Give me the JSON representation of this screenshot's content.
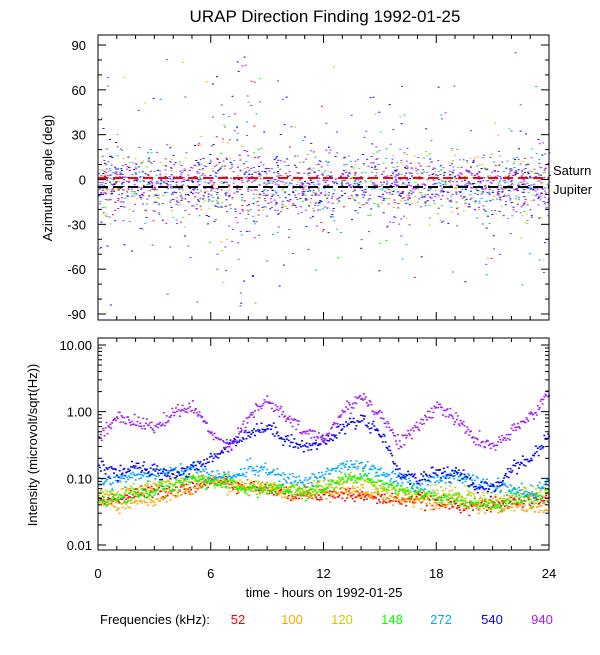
{
  "chart_data": [
    {
      "type": "scatter",
      "title": "URAP Direction Finding  1992-01-25",
      "ylabel": "Azimuthal angle (deg)",
      "xlim": [
        0,
        24
      ],
      "ylim": [
        -90,
        90
      ],
      "yticks": [
        "90",
        "60",
        "30",
        "0",
        "-30",
        "-60",
        "-90"
      ],
      "ytick_values": [
        90,
        60,
        30,
        0,
        -30,
        -60,
        -90
      ],
      "reference_lines": [
        {
          "name": "Saturn",
          "value": 1,
          "color": "#ff0000"
        },
        {
          "name": "Jupiter",
          "value": -5,
          "color": "#000000"
        }
      ],
      "scatter_center_deg": -3,
      "scatter_spread_deg": 10
    },
    {
      "type": "line",
      "xlabel": "time - hours on 1992-01-25",
      "ylabel": "Intensity (microvolt/sqrt(Hz))",
      "xlim": [
        0,
        24
      ],
      "ylim": [
        0.01,
        10
      ],
      "yscale": "log",
      "yticks": [
        "10.00",
        "1.00",
        "0.10",
        "0.01"
      ],
      "ytick_values": [
        10,
        1,
        0.1,
        0.01
      ],
      "xticks": [
        "0",
        "6",
        "12",
        "18",
        "24"
      ],
      "xtick_values": [
        0,
        6,
        12,
        18,
        24
      ],
      "x": [
        0,
        1,
        2,
        3,
        4,
        5,
        6,
        7,
        8,
        9,
        10,
        11,
        12,
        13,
        14,
        15,
        16,
        17,
        18,
        19,
        20,
        21,
        22,
        23,
        24
      ],
      "series": [
        {
          "name": "52",
          "color": "#ff0000",
          "values": [
            0.05,
            0.05,
            0.06,
            0.065,
            0.07,
            0.08,
            0.09,
            0.09,
            0.08,
            0.07,
            0.06,
            0.06,
            0.06,
            0.06,
            0.055,
            0.05,
            0.05,
            0.05,
            0.045,
            0.04,
            0.04,
            0.04,
            0.045,
            0.05,
            0.05
          ]
        },
        {
          "name": "100",
          "color": "#ffa500",
          "values": [
            0.045,
            0.04,
            0.045,
            0.05,
            0.06,
            0.07,
            0.1,
            0.08,
            0.07,
            0.07,
            0.06,
            0.06,
            0.06,
            0.07,
            0.06,
            0.06,
            0.05,
            0.05,
            0.045,
            0.05,
            0.04,
            0.035,
            0.04,
            0.04,
            0.035
          ]
        },
        {
          "name": "120",
          "color": "#cccc00",
          "values": [
            0.06,
            0.06,
            0.07,
            0.08,
            0.09,
            0.1,
            0.1,
            0.09,
            0.08,
            0.08,
            0.07,
            0.07,
            0.08,
            0.1,
            0.1,
            0.08,
            0.07,
            0.06,
            0.06,
            0.06,
            0.05,
            0.05,
            0.06,
            0.06,
            0.07
          ]
        },
        {
          "name": "148",
          "color": "#00ff00",
          "values": [
            0.05,
            0.05,
            0.06,
            0.065,
            0.08,
            0.1,
            0.09,
            0.08,
            0.07,
            0.07,
            0.07,
            0.06,
            0.07,
            0.1,
            0.11,
            0.09,
            0.07,
            0.06,
            0.05,
            0.05,
            0.045,
            0.04,
            0.05,
            0.05,
            0.06
          ]
        },
        {
          "name": "272",
          "color": "#00aaff",
          "values": [
            0.09,
            0.1,
            0.11,
            0.12,
            0.13,
            0.14,
            0.12,
            0.1,
            0.15,
            0.13,
            0.1,
            0.09,
            0.12,
            0.16,
            0.15,
            0.12,
            0.1,
            0.08,
            0.1,
            0.12,
            0.09,
            0.08,
            0.07,
            0.06,
            0.09
          ]
        },
        {
          "name": "540",
          "color": "#0000ff",
          "values": [
            0.15,
            0.12,
            0.15,
            0.13,
            0.12,
            0.14,
            0.2,
            0.35,
            0.5,
            0.6,
            0.4,
            0.3,
            0.35,
            0.6,
            0.8,
            0.5,
            0.12,
            0.1,
            0.13,
            0.12,
            0.08,
            0.07,
            0.15,
            0.2,
            0.5
          ]
        },
        {
          "name": "940",
          "color": "#a020f0",
          "values": [
            0.4,
            0.9,
            0.7,
            0.6,
            1.0,
            1.2,
            0.5,
            0.3,
            0.9,
            1.5,
            0.8,
            0.5,
            0.4,
            1.0,
            1.8,
            0.9,
            0.35,
            0.6,
            1.3,
            0.8,
            0.4,
            0.3,
            0.5,
            0.9,
            2.0
          ]
        }
      ]
    }
  ],
  "legend": {
    "label": "Frequencies (kHz):",
    "items": [
      "52",
      "100",
      "120",
      "148",
      "272",
      "540",
      "940"
    ]
  }
}
